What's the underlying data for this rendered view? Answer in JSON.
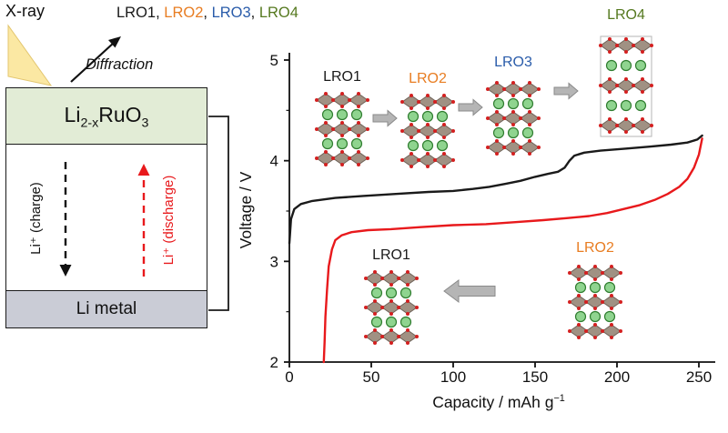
{
  "left_panel": {
    "xray_label": "X-ray",
    "diffraction_label": "Diffraction",
    "header_separator": ", ",
    "header_items": [
      {
        "text": "LRO1",
        "color": "#1a1a1a"
      },
      {
        "text": "LRO2",
        "color": "#e87d22"
      },
      {
        "text": "LRO3",
        "color": "#2a5caa"
      },
      {
        "text": "LRO4",
        "color": "#55791f"
      }
    ],
    "cathode_parts": {
      "p1": "Li",
      "s1": "2-x",
      "p2": "RuO",
      "s2": "3"
    },
    "charge_label": "Li⁺ (charge)",
    "discharge_label": "Li⁺ (discharge)",
    "anode_label": "Li metal"
  },
  "chart_data": {
    "type": "line",
    "xlabel_main": "Capacity / mAh g",
    "xlabel_sup": "−1",
    "ylabel": "Voltage / V",
    "xlim": [
      0,
      260
    ],
    "ylim": [
      2,
      5
    ],
    "x_ticks": [
      0,
      50,
      100,
      150,
      200,
      250
    ],
    "y_ticks": [
      2,
      3,
      4,
      5
    ],
    "y_minor_ticks": [
      2.5,
      3.5,
      4.5
    ],
    "grid": false,
    "legend": "none",
    "series": [
      {
        "name": "charge",
        "color": "#1a1a1a",
        "points": [
          [
            0,
            3.18
          ],
          [
            1,
            3.42
          ],
          [
            3,
            3.52
          ],
          [
            7,
            3.57
          ],
          [
            14,
            3.6
          ],
          [
            28,
            3.63
          ],
          [
            45,
            3.65
          ],
          [
            65,
            3.67
          ],
          [
            85,
            3.69
          ],
          [
            100,
            3.7
          ],
          [
            112,
            3.72
          ],
          [
            122,
            3.74
          ],
          [
            132,
            3.77
          ],
          [
            141,
            3.8
          ],
          [
            150,
            3.84
          ],
          [
            158,
            3.87
          ],
          [
            164,
            3.89
          ],
          [
            168,
            3.93
          ],
          [
            171,
            4.0
          ],
          [
            174,
            4.05
          ],
          [
            180,
            4.08
          ],
          [
            190,
            4.1
          ],
          [
            205,
            4.12
          ],
          [
            220,
            4.14
          ],
          [
            233,
            4.16
          ],
          [
            243,
            4.18
          ],
          [
            249,
            4.21
          ],
          [
            252,
            4.25
          ]
        ]
      },
      {
        "name": "discharge",
        "color": "#e8191c",
        "points": [
          [
            252,
            4.22
          ],
          [
            250,
            4.06
          ],
          [
            247,
            3.93
          ],
          [
            243,
            3.82
          ],
          [
            238,
            3.74
          ],
          [
            231,
            3.67
          ],
          [
            223,
            3.61
          ],
          [
            214,
            3.56
          ],
          [
            204,
            3.52
          ],
          [
            194,
            3.48
          ],
          [
            183,
            3.45
          ],
          [
            170,
            3.43
          ],
          [
            155,
            3.41
          ],
          [
            138,
            3.39
          ],
          [
            120,
            3.37
          ],
          [
            100,
            3.36
          ],
          [
            80,
            3.34
          ],
          [
            62,
            3.32
          ],
          [
            48,
            3.31
          ],
          [
            38,
            3.29
          ],
          [
            32,
            3.26
          ],
          [
            28,
            3.21
          ],
          [
            26,
            3.12
          ],
          [
            24,
            2.95
          ],
          [
            23,
            2.72
          ],
          [
            22,
            2.45
          ],
          [
            21.5,
            2.2
          ],
          [
            21,
            2.0
          ]
        ]
      }
    ],
    "annotations_top": [
      {
        "text": "LRO1",
        "color": "#1a1a1a"
      },
      {
        "text": "LRO2",
        "color": "#e87d22"
      },
      {
        "text": "LRO3",
        "color": "#2a5caa"
      },
      {
        "text": "LRO4",
        "color": "#55791f"
      }
    ],
    "annotations_bottom": [
      {
        "text": "LRO1",
        "color": "#1a1a1a"
      },
      {
        "text": "LRO2",
        "color": "#e87d22"
      }
    ]
  },
  "colors": {
    "cathode_bg": "#e2ecd6",
    "anode_bg": "#caccd6",
    "accent_red": "#e8191c",
    "beam_yellow": "#fbe8a3",
    "beam_edge": "#e3c66f",
    "arrow_fill": "#b5b5b5",
    "arrow_stroke": "#8a8a8a"
  },
  "structure_colors": {
    "li": "#8fd48f",
    "li_stroke": "#2f7d2f",
    "slab": "#a09183",
    "slab_stroke": "#6e6258",
    "oxygen": "#d42020",
    "cell_edge": "#b5b5b5"
  }
}
